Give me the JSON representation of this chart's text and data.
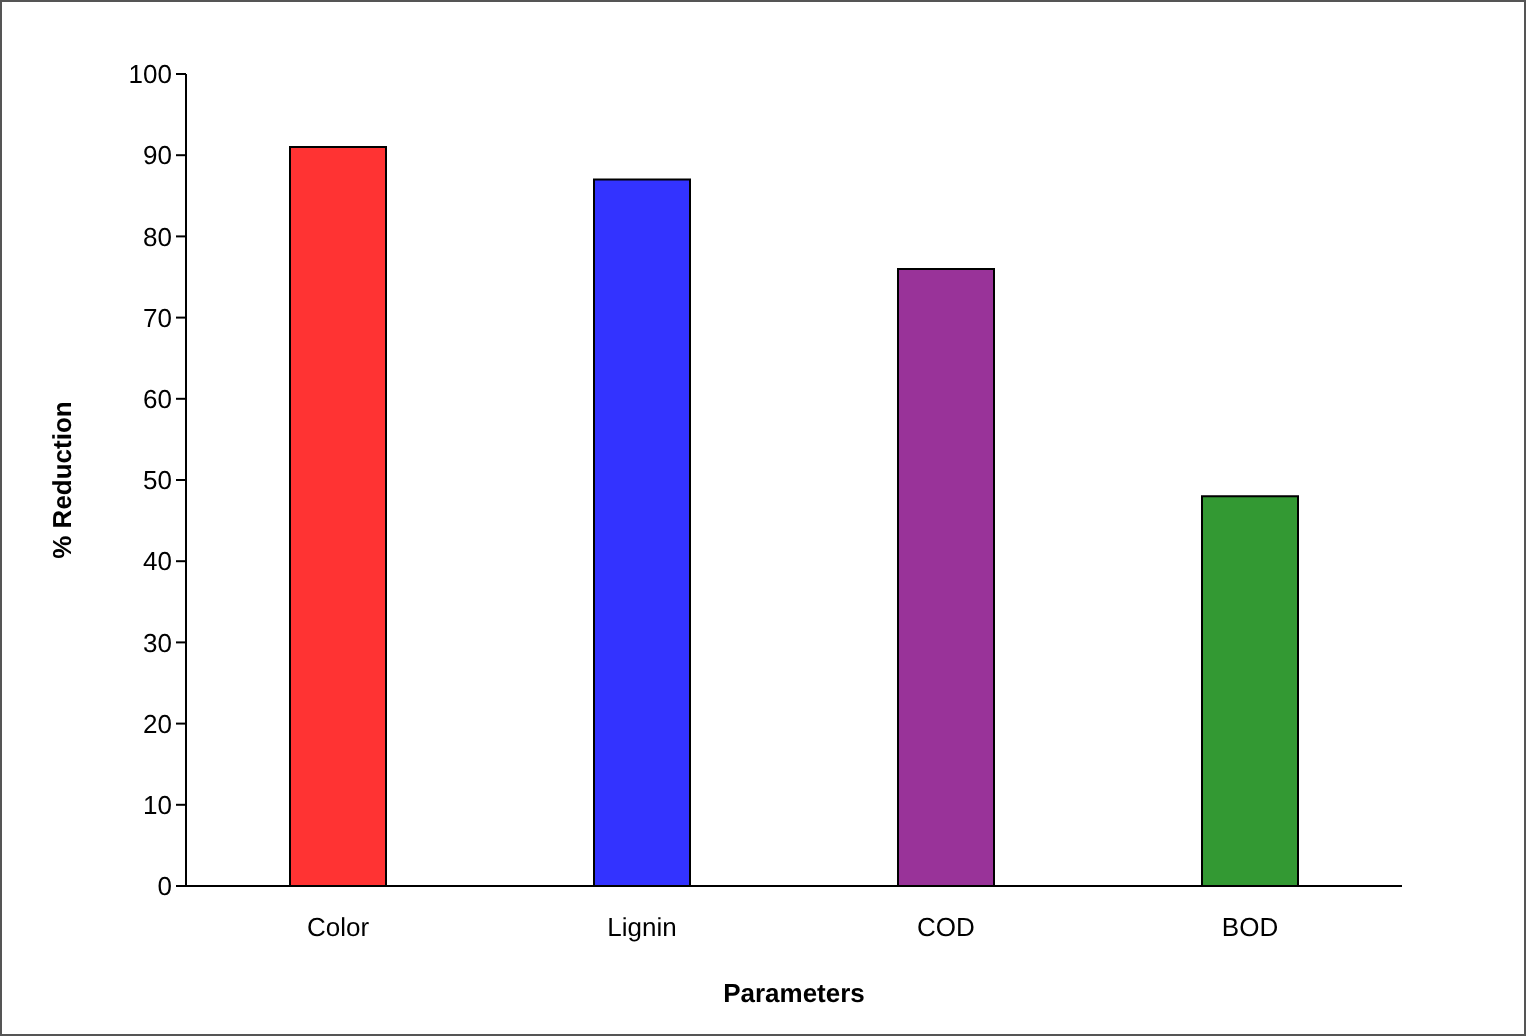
{
  "chart_data": {
    "type": "bar",
    "categories": [
      "Color",
      "Lignin",
      "COD",
      "BOD"
    ],
    "values": [
      91,
      87,
      76,
      48
    ],
    "colors": [
      "#ff3333",
      "#3333ff",
      "#993399",
      "#339933"
    ],
    "xlabel": "Parameters",
    "ylabel": "% Reduction",
    "ylim": [
      0,
      100
    ],
    "yticks": [
      0,
      10,
      20,
      30,
      40,
      50,
      60,
      70,
      80,
      90,
      100
    ],
    "grid": false,
    "legend": false
  }
}
